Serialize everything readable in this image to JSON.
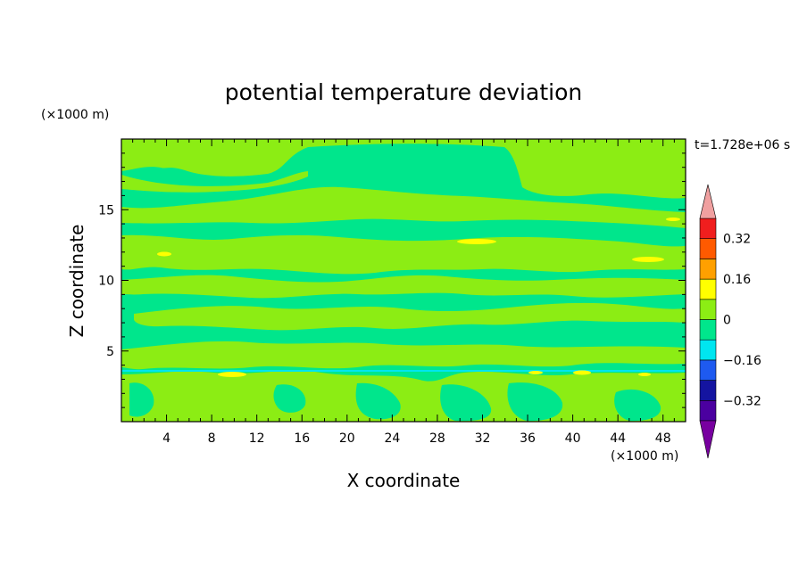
{
  "chart_data": {
    "type": "heatmap",
    "title": "potential temperature deviation",
    "xlabel": "X coordinate",
    "ylabel": "Z coordinate",
    "x_unit": "(×1000 m)",
    "y_unit": "(×1000 m)",
    "time_label": "t=1.728e+06 s",
    "xlim": [
      0,
      50
    ],
    "ylim": [
      0,
      20
    ],
    "x_ticks": [
      4,
      8,
      12,
      16,
      20,
      24,
      28,
      32,
      36,
      40,
      44,
      48
    ],
    "y_ticks": [
      5,
      10,
      15
    ],
    "colorbar": {
      "levels": [
        -0.4,
        -0.32,
        -0.24,
        -0.16,
        -0.08,
        0,
        0.08,
        0.16,
        0.24,
        0.32,
        0.4
      ],
      "labels": [
        "0.32",
        "0.16",
        "0",
        "−0.16",
        "−0.32"
      ],
      "label_values": [
        0.32,
        0.16,
        0,
        -0.16,
        -0.32
      ],
      "colors": [
        "#4b00a0",
        "#1414a0",
        "#1e5af0",
        "#00e6f0",
        "#00e68c",
        "#8ced14",
        "#ffff00",
        "#ffa000",
        "#ff5a00",
        "#f01e1e"
      ],
      "under_color": "#7800a0",
      "over_color": "#f0a0a0"
    },
    "field": {
      "background_color": "#00e68c",
      "dominant_positive_color": "#8ced14",
      "hot_spot_color": "#ffff00",
      "thin_negative_color": "#00e6f0"
    }
  }
}
